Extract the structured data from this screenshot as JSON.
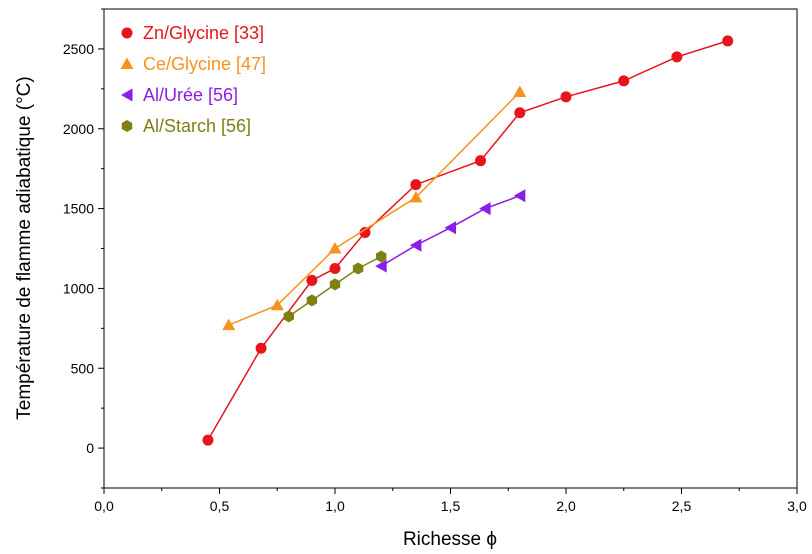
{
  "chart_data": {
    "type": "line",
    "xlabel": "Richesse ϕ",
    "ylabel": "Température de flamme adiabatique (°C)",
    "xlim": [
      0.0,
      3.0
    ],
    "ylim": [
      -250,
      2750
    ],
    "x_ticks": [
      0.0,
      0.5,
      1.0,
      1.5,
      2.0,
      2.5,
      3.0
    ],
    "x_tick_labels": [
      "0,0",
      "0,5",
      "1,0",
      "1,5",
      "2,0",
      "2,5",
      "3,0"
    ],
    "y_ticks": [
      0,
      500,
      1000,
      1500,
      2000,
      2500
    ],
    "y_tick_labels": [
      "0",
      "500",
      "1000",
      "1500",
      "2000",
      "2500"
    ],
    "grid": false,
    "legend_position": "top-left",
    "series": [
      {
        "name": "Zn/Glycine [33]",
        "color": "#e8141c",
        "marker": "circle",
        "x": [
          0.45,
          0.68,
          0.9,
          1.0,
          1.13,
          1.35,
          1.63,
          1.8,
          2.0,
          2.25,
          2.48,
          2.7
        ],
        "y": [
          50,
          625,
          1050,
          1125,
          1350,
          1650,
          1800,
          2100,
          2200,
          2300,
          2450,
          2550
        ]
      },
      {
        "name": "Ce/Glycine [47]",
        "color": "#f5931e",
        "marker": "triangle-up",
        "x": [
          0.54,
          0.75,
          1.0,
          1.35,
          1.8
        ],
        "y": [
          770,
          895,
          1250,
          1570,
          2230
        ]
      },
      {
        "name": "Al/Urée [56]",
        "color": "#8b1ee6",
        "marker": "triangle-left",
        "x": [
          1.2,
          1.35,
          1.5,
          1.65,
          1.8
        ],
        "y": [
          1140,
          1270,
          1380,
          1500,
          1580
        ]
      },
      {
        "name": "Al/Starch [56]",
        "color": "#808012",
        "marker": "hexagon",
        "x": [
          0.8,
          0.9,
          1.0,
          1.1,
          1.2
        ],
        "y": [
          825,
          925,
          1025,
          1125,
          1200
        ]
      }
    ]
  }
}
